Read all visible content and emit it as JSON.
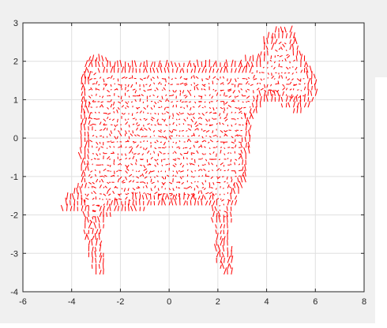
{
  "chart_data": {
    "type": "scatter",
    "subtype": "quiver-vector-field",
    "title": "",
    "xlabel": "",
    "ylabel": "",
    "xlim": [
      -6,
      8
    ],
    "ylim": [
      -4,
      3
    ],
    "xticks": [
      "-6",
      "-4",
      "-2",
      "0",
      "2",
      "4",
      "6",
      "8"
    ],
    "yticks": [
      "3",
      "2",
      "1",
      "0",
      "-1",
      "-2",
      "-3",
      "-4"
    ],
    "grid": true,
    "box": true,
    "series": [
      {
        "color": "#ff0000",
        "marker": "short arrows",
        "outline": [
          [
            -4.5,
            -1.95
          ],
          [
            -4.2,
            -1.6
          ],
          [
            -3.8,
            -1.3
          ],
          [
            -3.6,
            -0.8
          ],
          [
            -3.6,
            0.5
          ],
          [
            -3.7,
            1.3
          ],
          [
            -3.5,
            1.9
          ],
          [
            -3.2,
            2.1
          ],
          [
            -2.5,
            2.0
          ],
          [
            -1.5,
            1.95
          ],
          [
            0,
            1.9
          ],
          [
            1.5,
            1.9
          ],
          [
            2.8,
            1.95
          ],
          [
            3.6,
            2.1
          ],
          [
            4.0,
            2.6
          ],
          [
            4.5,
            2.85
          ],
          [
            5.0,
            2.8
          ],
          [
            5.3,
            2.4
          ],
          [
            5.7,
            1.95
          ],
          [
            6.0,
            1.6
          ],
          [
            6.1,
            1.2
          ],
          [
            5.8,
            0.8
          ],
          [
            5.3,
            0.6
          ],
          [
            4.8,
            0.7
          ],
          [
            4.3,
            0.9
          ],
          [
            3.8,
            0.8
          ],
          [
            3.4,
            0.3
          ],
          [
            3.3,
            -0.5
          ],
          [
            3.2,
            -1.2
          ],
          [
            2.8,
            -1.6
          ],
          [
            2.6,
            -2.1
          ],
          [
            2.5,
            -2.6
          ],
          [
            2.6,
            -3.2
          ],
          [
            2.7,
            -3.6
          ],
          [
            2.3,
            -3.7
          ],
          [
            1.9,
            -3.3
          ],
          [
            1.9,
            -2.6
          ],
          [
            1.7,
            -1.9
          ],
          [
            1.3,
            -1.8
          ],
          [
            0,
            -1.85
          ],
          [
            -1.0,
            -1.9
          ],
          [
            -2.0,
            -2.0
          ],
          [
            -2.6,
            -2.1
          ],
          [
            -2.8,
            -2.7
          ],
          [
            -2.6,
            -3.3
          ],
          [
            -2.7,
            -3.7
          ],
          [
            -3.1,
            -3.6
          ],
          [
            -3.3,
            -3.1
          ],
          [
            -3.5,
            -2.5
          ],
          [
            -3.6,
            -1.95
          ],
          [
            -4.0,
            -1.9
          ]
        ]
      }
    ]
  }
}
